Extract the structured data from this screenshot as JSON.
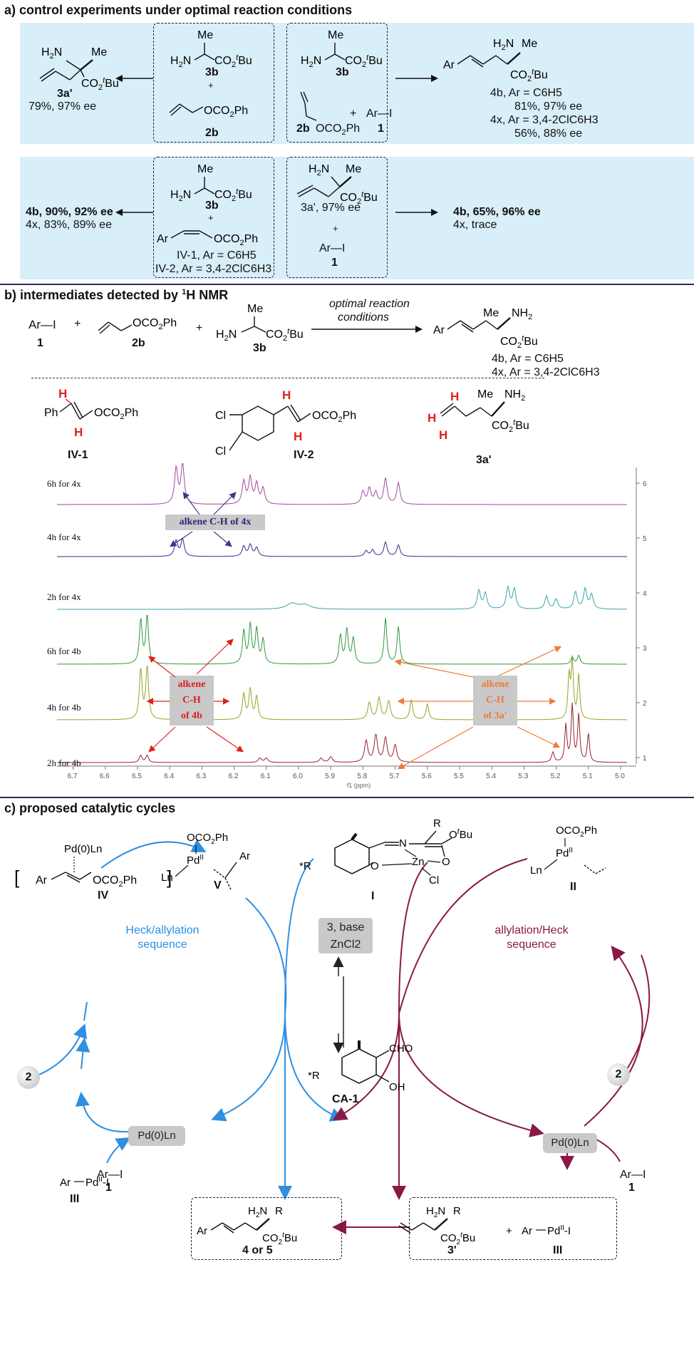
{
  "section_a": {
    "title": "a) control experiments under optimal reaction conditions",
    "row1": {
      "left_product": {
        "name": "3a'",
        "result": "79%, 97% ee"
      },
      "box1": {
        "amine": "3b",
        "plus": "+",
        "allyl": "2b"
      },
      "box2": {
        "amine": "3b",
        "plus": "+",
        "arI": "Ar—I",
        "arI_num": "1",
        "allyl": "2b",
        "allyl_group": "OCO2Ph"
      },
      "right_product": {
        "line1": "4b, Ar = C6H5",
        "line2": "81%, 97% ee",
        "line3": "4x, Ar = 3,4-2ClC6H3",
        "line4": "56%, 88% ee"
      }
    },
    "row2": {
      "left_result": {
        "line1": "4b, 90%, 92% ee",
        "line2": "4x, 83%, 89% ee"
      },
      "box3": {
        "amine": "3b",
        "plus": "+",
        "l1": "IV-1, Ar = C6H5",
        "l2": "IV-2, Ar = 3,4-2ClC6H3"
      },
      "box4": {
        "name": "3a', 97% ee",
        "plus": "+",
        "arI": "Ar—I",
        "arI_num": "1"
      },
      "right_result": {
        "line1": "4b, 65%, 96% ee",
        "line2": "4x, trace"
      }
    }
  },
  "section_b": {
    "title": "b) intermediates detected by 1H NMR",
    "scheme": {
      "arI": "Ar—I",
      "n1": "1",
      "n2b": "2b",
      "n3b": "3b",
      "conditions1": "optimal reaction",
      "conditions2": "conditions",
      "p1": "4b, Ar = C6H5",
      "p2": "4x, Ar = 3,4-2ClC6H3"
    },
    "intermediates": [
      "IV-1",
      "IV-2",
      "3a'"
    ],
    "spectra": [
      {
        "label": "6h for 4x",
        "color": "#a04a9a"
      },
      {
        "label": "4h for 4x",
        "color": "#2e2e8f"
      },
      {
        "label": "2h for 4x",
        "color": "#3aa4a8"
      },
      {
        "label": "6h for 4b",
        "color": "#2f9a3c"
      },
      {
        "label": "4h for 4b",
        "color": "#9aa225"
      },
      {
        "label": "2h for 4b",
        "color": "#9a2230"
      }
    ],
    "annotations": {
      "alkene_4x": "alkene C-H of 4x",
      "alkene_4b": [
        "alkene",
        "C-H",
        "of 4b"
      ],
      "alkene_3a": [
        "alkene",
        "C-H",
        "of 3a'"
      ]
    },
    "xaxis": {
      "ticks": [
        "6.7",
        "6.6",
        "6.5",
        "6.4",
        "6.3",
        "6.2",
        "6.1",
        "6.0",
        "5.9",
        "5.8",
        "5.7",
        "5.6",
        "5.5",
        "5.4",
        "5.3",
        "5.2",
        "5.1",
        "5.0"
      ],
      "label": "f1 (ppm)"
    },
    "yaxis": {
      "ticks": [
        "6",
        "5",
        "4",
        "3",
        "2",
        "1"
      ]
    }
  },
  "section_c": {
    "title": "c) proposed catalytic cycles",
    "left_cycle": "Heck/allylation sequence",
    "right_cycle": "allylation/Heck sequence",
    "catalyst_I": "I",
    "center_cond1": "3, base",
    "center_cond2": "ZnCl2",
    "ca1": "CA-1",
    "pd0_left": "Pd(0)Ln",
    "pd0_right": "Pd(0)Ln",
    "circle2": "2",
    "labels": {
      "IV": "IV",
      "V": "V",
      "II": "II",
      "III_left": "III",
      "arI_left": "Ar—I",
      "one_left": "1",
      "arI_right": "Ar—I",
      "one_right": "1"
    },
    "bottom_left": {
      "name": "4 or 5"
    },
    "bottom_right": {
      "name": "3'",
      "pd": "III"
    }
  }
}
